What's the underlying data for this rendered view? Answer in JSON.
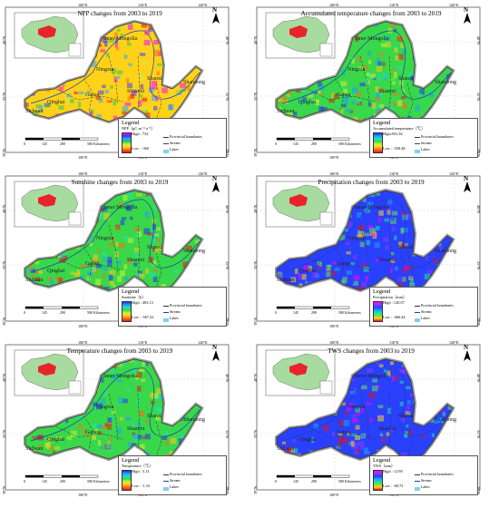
{
  "common": {
    "legend_title": "Legend",
    "provincial_label": "Provincial boundaries",
    "stream_label": "Stream",
    "lakes_label": "Lakes",
    "scale_ticks": [
      "0",
      "145",
      "290",
      "580 Kilometers"
    ],
    "north_label": "N",
    "provinces": [
      "Inner Mongolia",
      "Ningxia",
      "Shanxi",
      "Shaanxi",
      "Gansu",
      "Qinghai",
      "Henan",
      "Shandong",
      "Sichuan"
    ],
    "lon_labels_top": [
      "100°E",
      "110°E",
      "120°E"
    ],
    "lon_labels_bottom": [
      "100°E",
      "110°E"
    ],
    "lat_labels": [
      "40°N",
      "35°N",
      "30°N"
    ]
  },
  "panels": [
    {
      "title": "NPP changes from 2003 to 2019",
      "variable": "NPP（gC·m⁻²·a⁻¹）",
      "high": "High : 732",
      "low": "Low : -360",
      "palette": "npp"
    },
    {
      "title": "Accumulated temperature changes from 2003 to 2019",
      "variable": "Accumulated temperature（℃）",
      "high": "High:952.36",
      "low": "Low : -358.48",
      "palette": "temp"
    },
    {
      "title": "Sunshine changes from 2003 to 2019",
      "variable": "Sunshine（h）",
      "high": "High : 483.13",
      "low": "Low : -567.22",
      "palette": "temp"
    },
    {
      "title": "Precipitation changes from 2003 to 2019",
      "variable": "Precipitation（mm）",
      "high": "High : 120.07",
      "low": "Low : -466.44",
      "palette": "precip"
    },
    {
      "title": "Temperature changes from 2003 to 2019",
      "variable": "Temperature（℃）",
      "high": "High : 3.13",
      "low": "Low : -1.33",
      "palette": "temp"
    },
    {
      "title": "TWS changes from 2003 to 2019",
      "variable": "TWS（mm）",
      "high": "High : 12.98",
      "low": "Low : -68.72",
      "palette": "precip"
    }
  ],
  "colors": {
    "npp": [
      "#ff00ff",
      "#3a3aff",
      "#2aa7ff",
      "#22cc55",
      "#cfe94a",
      "#ffd21a",
      "#ff6a1a",
      "#e4131a"
    ],
    "temp": [
      "#2030ff",
      "#1ea0ff",
      "#20e0c0",
      "#38d84a",
      "#d6f030",
      "#ffc81e",
      "#ff6b1a",
      "#e01b1b"
    ],
    "precip": [
      "#ff00ff",
      "#8a3cff",
      "#2a40ff",
      "#1ea0ff",
      "#20e0a0",
      "#6ae04a",
      "#ffd21a",
      "#e4131a"
    ],
    "china_fill": "#a8dba0",
    "region_fill": "#e8242a",
    "frame": "#5a5a5a"
  }
}
